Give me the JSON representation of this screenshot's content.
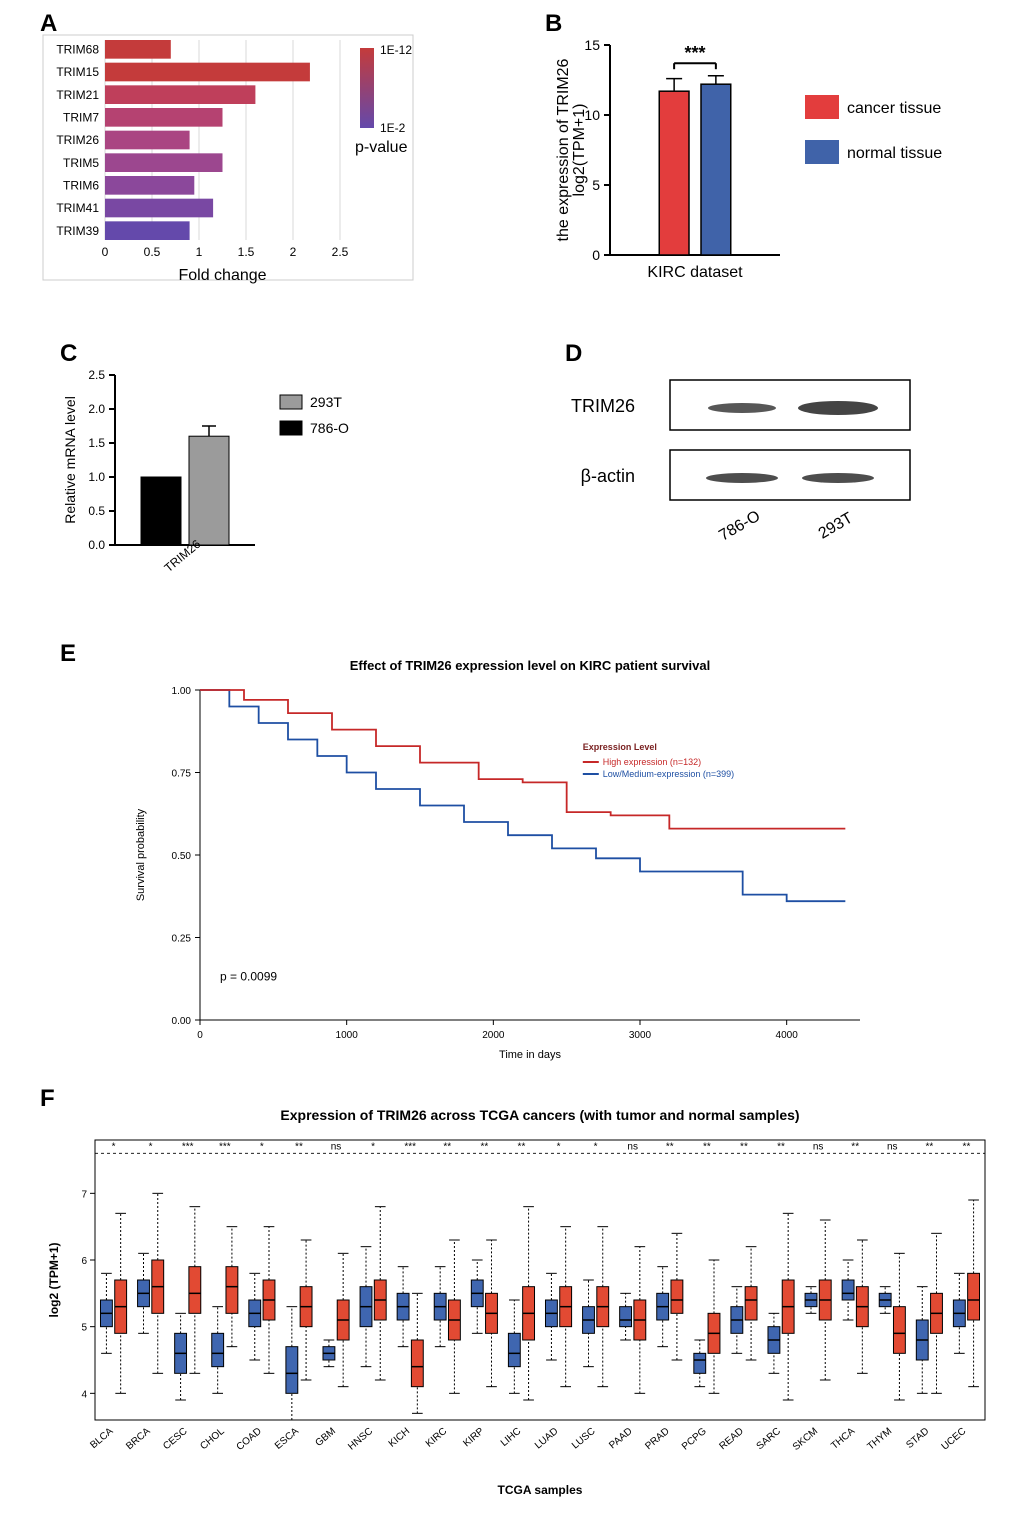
{
  "panelA": {
    "label": "A",
    "type": "horizontal-bar",
    "categories": [
      "TRIM68",
      "TRIM15",
      "TRIM21",
      "TRIM7",
      "TRIM26",
      "TRIM5",
      "TRIM6",
      "TRIM41",
      "TRIM39"
    ],
    "values": [
      0.7,
      2.18,
      1.6,
      1.25,
      0.9,
      1.25,
      0.95,
      1.15,
      0.9
    ],
    "bar_colors": [
      "#c43b3b",
      "#c43b3b",
      "#bf3f5b",
      "#b54271",
      "#aa4582",
      "#9c478f",
      "#8b489b",
      "#7948a3",
      "#6449ab"
    ],
    "xaxis_label": "Fold change",
    "xlim": [
      0,
      2.5
    ],
    "xstep": 0.5,
    "colorbar": {
      "top_label": "1E-12",
      "bottom_label": "1E-2",
      "title": "p-value",
      "gradient": [
        "#c43b3b",
        "#6449ab"
      ]
    },
    "plot_bg": "#ffffff",
    "panel_border": "#cccccc",
    "font_tick": 12,
    "font_axis": 16
  },
  "panelB": {
    "label": "B",
    "type": "bar-with-error",
    "ylabel": "the expression of TRIM26\nlog2(TPM+1)",
    "xlabel": "KIRC dataset",
    "sig": "***",
    "ylim": [
      0,
      15
    ],
    "ystep": 5,
    "bars": [
      {
        "name": "cancer tissue",
        "value": 11.7,
        "err": 0.9,
        "color": "#e33d3d"
      },
      {
        "name": "normal tissue",
        "value": 12.2,
        "err": 0.6,
        "color": "#4063a9"
      }
    ],
    "legend": [
      {
        "label": "cancer tissue",
        "color": "#e33d3d"
      },
      {
        "label": "normal tissue",
        "color": "#4063a9"
      }
    ],
    "bar_width": 0.35,
    "font_tick": 14,
    "font_axis": 16,
    "font_legend": 16
  },
  "panelC": {
    "label": "C",
    "type": "bar-with-error",
    "ylabel": "Relative mRNA level",
    "ylim": [
      0,
      2.5
    ],
    "ystep": 0.5,
    "xcat": "TRIM26",
    "bars": [
      {
        "name": "786-O",
        "value": 1.0,
        "err": 0,
        "color": "#000000"
      },
      {
        "name": "293T",
        "value": 1.6,
        "err": 0.15,
        "color": "#9b9b9b"
      }
    ],
    "legend": [
      {
        "label": "293T",
        "color": "#9b9b9b"
      },
      {
        "label": "786-O",
        "color": "#000000"
      }
    ],
    "font_tick": 12,
    "font_axis": 14,
    "font_legend": 14
  },
  "panelD": {
    "label": "D",
    "labels": {
      "row1": "TRIM26",
      "row2": "β-actin",
      "lane1": "786-O",
      "lane2": "293T"
    },
    "blot_border": "#000000",
    "band_color": "#3a3a3a"
  },
  "panelE": {
    "label": "E",
    "title": "Effect of TRIM26 expression level on KIRC patient survival",
    "xlabel": "Time in days",
    "ylabel": "Survival probability",
    "p_text": "p = 0.0099",
    "xlim": [
      0,
      4500
    ],
    "xstep": 1000,
    "ylim": [
      0,
      1.0
    ],
    "ystep": 0.25,
    "legend": {
      "title": "Expression Level",
      "items": [
        {
          "label": "High expression (n=132)",
          "color": "#c62828"
        },
        {
          "label": "Low/Medium-expression (n=399)",
          "color": "#1e4fa3"
        }
      ]
    },
    "curve_high": {
      "color": "#c62828",
      "points": [
        [
          0,
          1.0
        ],
        [
          300,
          0.97
        ],
        [
          600,
          0.93
        ],
        [
          900,
          0.88
        ],
        [
          1200,
          0.83
        ],
        [
          1500,
          0.78
        ],
        [
          1900,
          0.73
        ],
        [
          2200,
          0.72
        ],
        [
          2500,
          0.63
        ],
        [
          2800,
          0.62
        ],
        [
          3200,
          0.58
        ],
        [
          4400,
          0.58
        ]
      ]
    },
    "curve_low": {
      "color": "#1e4fa3",
      "points": [
        [
          0,
          1.0
        ],
        [
          200,
          0.95
        ],
        [
          400,
          0.9
        ],
        [
          600,
          0.85
        ],
        [
          800,
          0.8
        ],
        [
          1000,
          0.75
        ],
        [
          1200,
          0.7
        ],
        [
          1500,
          0.65
        ],
        [
          1800,
          0.6
        ],
        [
          2100,
          0.56
        ],
        [
          2400,
          0.52
        ],
        [
          2700,
          0.49
        ],
        [
          3000,
          0.45
        ],
        [
          3400,
          0.45
        ],
        [
          3700,
          0.38
        ],
        [
          4000,
          0.36
        ],
        [
          4400,
          0.36
        ]
      ]
    },
    "font_title": 13,
    "font_tick": 10,
    "font_axis": 11,
    "font_legend": 9
  },
  "panelF": {
    "label": "F",
    "title": "Expression of TRIM26 across TCGA cancers (with tumor and normal samples)",
    "ylabel": "log2 (TPM+1)",
    "xlabel": "TCGA samples",
    "ylim": [
      3.6,
      7.8
    ],
    "ystep_major": 1,
    "ytick_labels": [
      4,
      5,
      6,
      7
    ],
    "normal_color": "#3f66b0",
    "tumor_color": "#e24a33",
    "stroke": "#000000",
    "font_title": 14,
    "font_tick": 10,
    "font_axis": 12,
    "cancers": [
      {
        "name": "BLCA",
        "sig": "*",
        "normal": {
          "q1": 5.0,
          "med": 5.2,
          "q3": 5.4,
          "lo": 4.6,
          "hi": 5.8
        },
        "tumor": {
          "q1": 4.9,
          "med": 5.3,
          "q3": 5.7,
          "lo": 4.0,
          "hi": 6.7
        }
      },
      {
        "name": "BRCA",
        "sig": "*",
        "normal": {
          "q1": 5.3,
          "med": 5.5,
          "q3": 5.7,
          "lo": 4.9,
          "hi": 6.1
        },
        "tumor": {
          "q1": 5.2,
          "med": 5.6,
          "q3": 6.0,
          "lo": 4.3,
          "hi": 7.0
        }
      },
      {
        "name": "CESC",
        "sig": "***",
        "normal": {
          "q1": 4.3,
          "med": 4.6,
          "q3": 4.9,
          "lo": 3.9,
          "hi": 5.2
        },
        "tumor": {
          "q1": 5.2,
          "med": 5.5,
          "q3": 5.9,
          "lo": 4.3,
          "hi": 6.8
        }
      },
      {
        "name": "CHOL",
        "sig": "***",
        "normal": {
          "q1": 4.4,
          "med": 4.6,
          "q3": 4.9,
          "lo": 4.0,
          "hi": 5.3
        },
        "tumor": {
          "q1": 5.2,
          "med": 5.6,
          "q3": 5.9,
          "lo": 4.7,
          "hi": 6.5
        }
      },
      {
        "name": "COAD",
        "sig": "*",
        "normal": {
          "q1": 5.0,
          "med": 5.2,
          "q3": 5.4,
          "lo": 4.5,
          "hi": 5.8
        },
        "tumor": {
          "q1": 5.1,
          "med": 5.4,
          "q3": 5.7,
          "lo": 4.3,
          "hi": 6.5
        }
      },
      {
        "name": "ESCA",
        "sig": "**",
        "normal": {
          "q1": 4.0,
          "med": 4.3,
          "q3": 4.7,
          "lo": 3.6,
          "hi": 5.3
        },
        "tumor": {
          "q1": 5.0,
          "med": 5.3,
          "q3": 5.6,
          "lo": 4.2,
          "hi": 6.3
        }
      },
      {
        "name": "GBM",
        "sig": "ns",
        "normal": {
          "q1": 4.5,
          "med": 4.6,
          "q3": 4.7,
          "lo": 4.4,
          "hi": 4.8
        },
        "tumor": {
          "q1": 4.8,
          "med": 5.1,
          "q3": 5.4,
          "lo": 4.1,
          "hi": 6.1
        }
      },
      {
        "name": "HNSC",
        "sig": "*",
        "normal": {
          "q1": 5.0,
          "med": 5.3,
          "q3": 5.6,
          "lo": 4.4,
          "hi": 6.2
        },
        "tumor": {
          "q1": 5.1,
          "med": 5.4,
          "q3": 5.7,
          "lo": 4.2,
          "hi": 6.8
        }
      },
      {
        "name": "KICH",
        "sig": "***",
        "normal": {
          "q1": 5.1,
          "med": 5.3,
          "q3": 5.5,
          "lo": 4.7,
          "hi": 5.9
        },
        "tumor": {
          "q1": 4.1,
          "med": 4.4,
          "q3": 4.8,
          "lo": 3.7,
          "hi": 5.5
        }
      },
      {
        "name": "KIRC",
        "sig": "**",
        "normal": {
          "q1": 5.1,
          "med": 5.3,
          "q3": 5.5,
          "lo": 4.7,
          "hi": 5.9
        },
        "tumor": {
          "q1": 4.8,
          "med": 5.1,
          "q3": 5.4,
          "lo": 4.0,
          "hi": 6.3
        }
      },
      {
        "name": "KIRP",
        "sig": "**",
        "normal": {
          "q1": 5.3,
          "med": 5.5,
          "q3": 5.7,
          "lo": 4.9,
          "hi": 6.0
        },
        "tumor": {
          "q1": 4.9,
          "med": 5.2,
          "q3": 5.5,
          "lo": 4.1,
          "hi": 6.3
        }
      },
      {
        "name": "LIHC",
        "sig": "**",
        "normal": {
          "q1": 4.4,
          "med": 4.6,
          "q3": 4.9,
          "lo": 4.0,
          "hi": 5.4
        },
        "tumor": {
          "q1": 4.8,
          "med": 5.2,
          "q3": 5.6,
          "lo": 3.9,
          "hi": 6.8
        }
      },
      {
        "name": "LUAD",
        "sig": "*",
        "normal": {
          "q1": 5.0,
          "med": 5.2,
          "q3": 5.4,
          "lo": 4.5,
          "hi": 5.8
        },
        "tumor": {
          "q1": 5.0,
          "med": 5.3,
          "q3": 5.6,
          "lo": 4.1,
          "hi": 6.5
        }
      },
      {
        "name": "LUSC",
        "sig": "*",
        "normal": {
          "q1": 4.9,
          "med": 5.1,
          "q3": 5.3,
          "lo": 4.4,
          "hi": 5.7
        },
        "tumor": {
          "q1": 5.0,
          "med": 5.3,
          "q3": 5.6,
          "lo": 4.1,
          "hi": 6.5
        }
      },
      {
        "name": "PAAD",
        "sig": "ns",
        "normal": {
          "q1": 5.0,
          "med": 5.1,
          "q3": 5.3,
          "lo": 4.8,
          "hi": 5.5
        },
        "tumor": {
          "q1": 4.8,
          "med": 5.1,
          "q3": 5.4,
          "lo": 4.0,
          "hi": 6.2
        }
      },
      {
        "name": "PRAD",
        "sig": "**",
        "normal": {
          "q1": 5.1,
          "med": 5.3,
          "q3": 5.5,
          "lo": 4.7,
          "hi": 5.9
        },
        "tumor": {
          "q1": 5.2,
          "med": 5.4,
          "q3": 5.7,
          "lo": 4.5,
          "hi": 6.4
        }
      },
      {
        "name": "PCPG",
        "sig": "**",
        "normal": {
          "q1": 4.3,
          "med": 4.5,
          "q3": 4.6,
          "lo": 4.1,
          "hi": 4.8
        },
        "tumor": {
          "q1": 4.6,
          "med": 4.9,
          "q3": 5.2,
          "lo": 4.0,
          "hi": 6.0
        }
      },
      {
        "name": "READ",
        "sig": "**",
        "normal": {
          "q1": 4.9,
          "med": 5.1,
          "q3": 5.3,
          "lo": 4.6,
          "hi": 5.6
        },
        "tumor": {
          "q1": 5.1,
          "med": 5.4,
          "q3": 5.6,
          "lo": 4.5,
          "hi": 6.2
        }
      },
      {
        "name": "SARC",
        "sig": "**",
        "normal": {
          "q1": 4.6,
          "med": 4.8,
          "q3": 5.0,
          "lo": 4.3,
          "hi": 5.2
        },
        "tumor": {
          "q1": 4.9,
          "med": 5.3,
          "q3": 5.7,
          "lo": 3.9,
          "hi": 6.7
        }
      },
      {
        "name": "SKCM",
        "sig": "ns",
        "normal": {
          "q1": 5.3,
          "med": 5.4,
          "q3": 5.5,
          "lo": 5.2,
          "hi": 5.6
        },
        "tumor": {
          "q1": 5.1,
          "med": 5.4,
          "q3": 5.7,
          "lo": 4.2,
          "hi": 6.6
        }
      },
      {
        "name": "THCA",
        "sig": "**",
        "normal": {
          "q1": 5.4,
          "med": 5.5,
          "q3": 5.7,
          "lo": 5.1,
          "hi": 6.0
        },
        "tumor": {
          "q1": 5.0,
          "med": 5.3,
          "q3": 5.6,
          "lo": 4.3,
          "hi": 6.3
        }
      },
      {
        "name": "THYM",
        "sig": "ns",
        "normal": {
          "q1": 5.3,
          "med": 5.4,
          "q3": 5.5,
          "lo": 5.2,
          "hi": 5.6
        },
        "tumor": {
          "q1": 4.6,
          "med": 4.9,
          "q3": 5.3,
          "lo": 3.9,
          "hi": 6.1
        }
      },
      {
        "name": "STAD",
        "sig": "**",
        "normal": {
          "q1": 4.5,
          "med": 4.8,
          "q3": 5.1,
          "lo": 4.0,
          "hi": 5.6
        },
        "tumor": {
          "q1": 4.9,
          "med": 5.2,
          "q3": 5.5,
          "lo": 4.0,
          "hi": 6.4
        }
      },
      {
        "name": "UCEC",
        "sig": "**",
        "normal": {
          "q1": 5.0,
          "med": 5.2,
          "q3": 5.4,
          "lo": 4.6,
          "hi": 5.8
        },
        "tumor": {
          "q1": 5.1,
          "med": 5.4,
          "q3": 5.8,
          "lo": 4.1,
          "hi": 6.9
        }
      }
    ]
  }
}
